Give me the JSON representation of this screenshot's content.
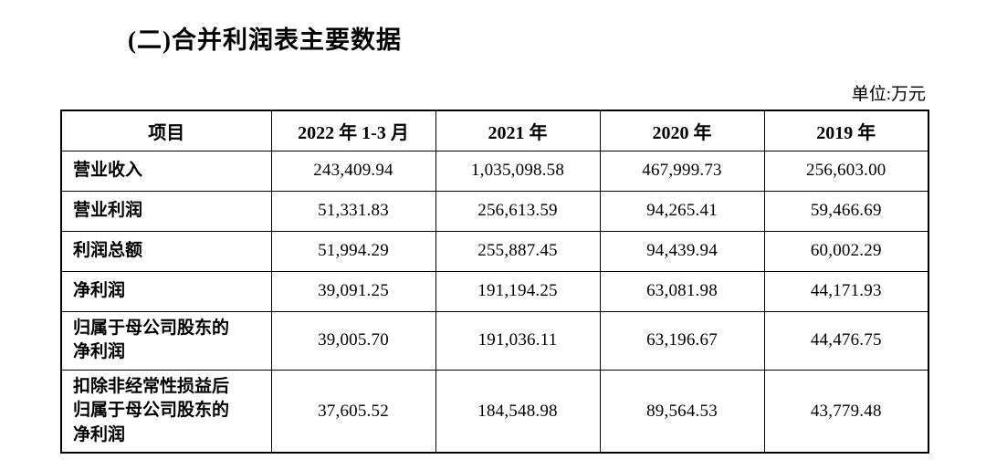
{
  "page": {
    "title": "(二)合并利润表主要数据",
    "unit_label": "单位:万元"
  },
  "table": {
    "headers": [
      "项目",
      "2022 年 1-3 月",
      "2021 年",
      "2020 年",
      "2019 年"
    ],
    "rows": [
      {
        "label": "营业收入",
        "values": [
          "243,409.94",
          "1,035,098.58",
          "467,999.73",
          "256,603.00"
        ]
      },
      {
        "label": "营业利润",
        "values": [
          "51,331.83",
          "256,613.59",
          "94,265.41",
          "59,466.69"
        ]
      },
      {
        "label": "利润总额",
        "values": [
          "51,994.29",
          "255,887.45",
          "94,439.94",
          "60,002.29"
        ]
      },
      {
        "label": "净利润",
        "values": [
          "39,091.25",
          "191,194.25",
          "63,081.98",
          "44,171.93"
        ]
      },
      {
        "label": "归属于母公司股东的\n净利润",
        "values": [
          "39,005.70",
          "191,036.11",
          "63,196.67",
          "44,476.75"
        ]
      },
      {
        "label": "扣除非经常性损益后\n归属于母公司股东的\n净利润",
        "values": [
          "37,605.52",
          "184,548.98",
          "89,564.53",
          "43,779.48"
        ]
      }
    ]
  }
}
